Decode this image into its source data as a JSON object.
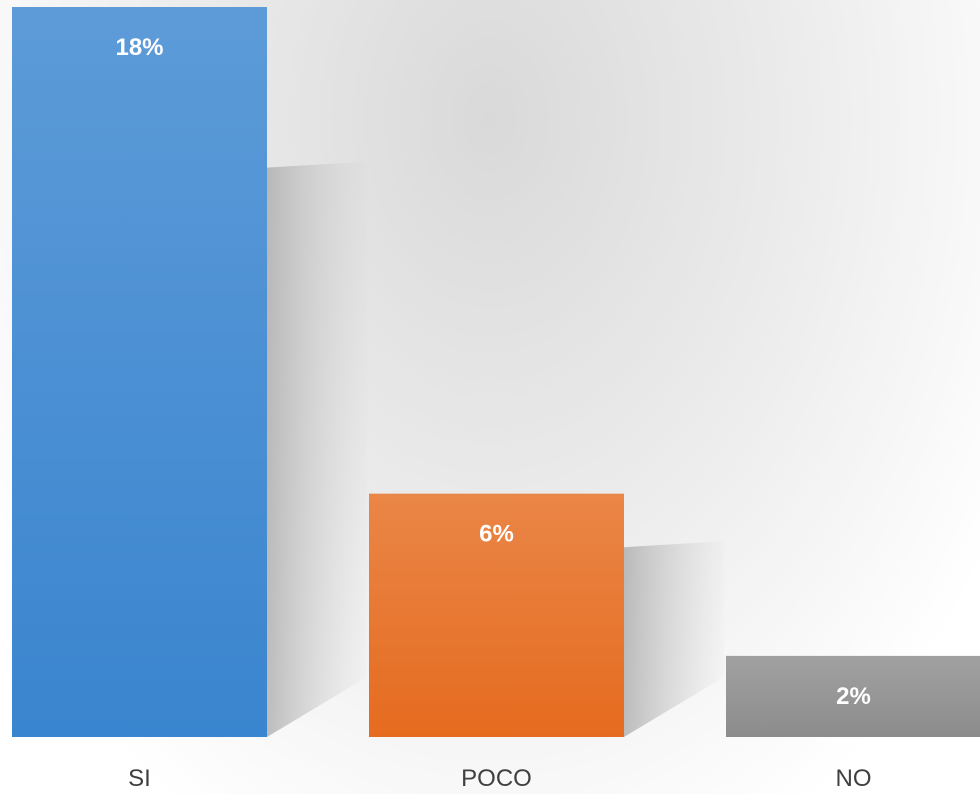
{
  "chart_data": {
    "type": "bar",
    "categories": [
      "SI",
      "POCO",
      "NO"
    ],
    "values": [
      18,
      6,
      2
    ],
    "data_labels": [
      "18%",
      "6%",
      "2%"
    ],
    "colors": [
      "#3a85cf",
      "#e56b1f",
      "#8c8c8c"
    ],
    "ylim": [
      0,
      18
    ],
    "grid": false,
    "legend": "none",
    "title": "",
    "xlabel": "",
    "ylabel": ""
  }
}
